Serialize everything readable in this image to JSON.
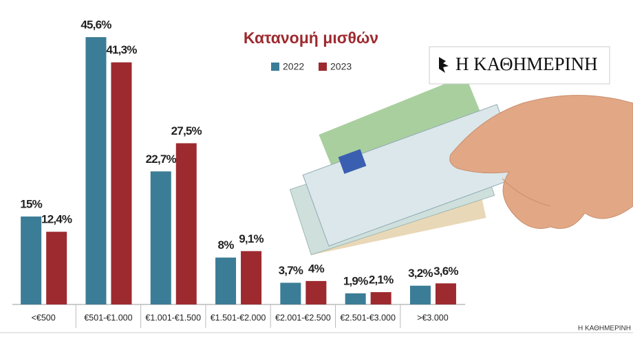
{
  "chart_data": {
    "type": "bar",
    "title": "Κατανομή μισθών",
    "categories": [
      "<€500",
      "€501-€1.000",
      "€1.001-€1.500",
      "€1.501-€2.000",
      "€2.001-€2.500",
      "€2.501-€3.000",
      ">€3.000"
    ],
    "series": [
      {
        "name": "2022",
        "color": "#3b7d96",
        "values": [
          15,
          45.6,
          22.7,
          8,
          3.7,
          1.9,
          3.2
        ],
        "value_labels": [
          "15%",
          "45,6%",
          "22,7%",
          "8%",
          "3,7%",
          "1,9%",
          "3,2%"
        ]
      },
      {
        "name": "2023",
        "color": "#9d2a2f",
        "values": [
          12.4,
          41.3,
          27.5,
          9.1,
          4,
          2.1,
          3.6
        ],
        "value_labels": [
          "12,4%",
          "41,3%",
          "27,5%",
          "9,1%",
          "4%",
          "2,1%",
          "3,6%"
        ]
      }
    ]
  },
  "branding": {
    "logo": "Η ΚΑΘΗΜΕΡΙΝΗ",
    "footer": "Η ΚΑΘΗΜΕΡΙΝΗ"
  }
}
